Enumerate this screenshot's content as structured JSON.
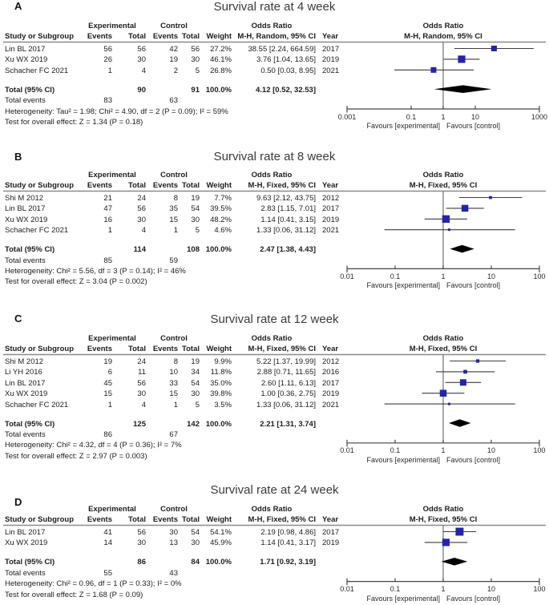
{
  "figure": {
    "favours_left": "Favours [experimental]",
    "favours_right": "Favours [control]",
    "colors": {
      "marker": "#2323b0",
      "diamond": "#000000",
      "axis": "#454545",
      "ref_line": "#6f6f6f",
      "header_rule": "#8a8a8a",
      "text": "#1c1c1c"
    }
  },
  "columns": {
    "group_experimental": "Experimental",
    "group_control": "Control",
    "group_odds_ratio": "Odds Ratio",
    "study": "Study or Subgroup",
    "events": "Events",
    "total": "Total",
    "weight": "Weight",
    "year": "Year",
    "total_events_label": "Total events"
  },
  "chart_data": [
    {
      "type": "forest_plot",
      "label": "A",
      "title": "Survival rate at 4 week",
      "effect_measure": "Odds Ratio",
      "method_header": "M-H, Random, 95% CI",
      "studies": [
        {
          "study": "Lin BL 2017",
          "exp_events": 56,
          "exp_total": 56,
          "ctl_events": 42,
          "ctl_total": 56,
          "weight": "27.2%",
          "weight_val": 27.2,
          "or": 38.55,
          "ci_lo": 2.24,
          "ci_hi": 664.59,
          "or_text": "38.55 [2.24, 664.59]",
          "year": "2017"
        },
        {
          "study": "Xu WX 2019",
          "exp_events": 26,
          "exp_total": 30,
          "ctl_events": 19,
          "ctl_total": 30,
          "weight": "46.1%",
          "weight_val": 46.1,
          "or": 3.76,
          "ci_lo": 1.04,
          "ci_hi": 13.65,
          "or_text": "3.76 [1.04, 13.65]",
          "year": "2019"
        },
        {
          "study": "Schacher FC 2021",
          "exp_events": 1,
          "exp_total": 4,
          "ctl_events": 2,
          "ctl_total": 5,
          "weight": "26.8%",
          "weight_val": 26.8,
          "or": 0.5,
          "ci_lo": 0.03,
          "ci_hi": 8.95,
          "or_text": "0.50 [0.03, 8.95]",
          "year": "2021"
        }
      ],
      "total": {
        "label": "Total (95% CI)",
        "exp_total": 90,
        "ctl_total": 91,
        "weight": "100.0%",
        "or": 4.12,
        "ci_lo": 0.52,
        "ci_hi": 32.53,
        "or_text": "4.12 [0.52, 32.53]"
      },
      "total_events": {
        "exp": 83,
        "ctl": 63
      },
      "heterogeneity": "Heterogeneity: Tau² = 1.98; Chi² = 4.90, df = 2 (P = 0.09); I² = 59%",
      "overall_effect": "Test for overall effect: Z = 1.34 (P = 0.18)",
      "axis": {
        "range": [
          0.001,
          1000
        ],
        "tick_values": [
          0.001,
          0.1,
          1,
          10,
          1000
        ],
        "ticks": [
          "0.001",
          "0.1",
          "1",
          "10",
          "1000"
        ],
        "scale": "log"
      }
    },
    {
      "type": "forest_plot",
      "label": "B",
      "title": "Survival rate at 8 week",
      "effect_measure": "Odds Ratio",
      "method_header": "M-H, Fixed, 95% CI",
      "studies": [
        {
          "study": "Shi M 2012",
          "exp_events": 21,
          "exp_total": 24,
          "ctl_events": 8,
          "ctl_total": 19,
          "weight": "7.7%",
          "weight_val": 7.7,
          "or": 9.63,
          "ci_lo": 2.12,
          "ci_hi": 43.75,
          "or_text": "9.63 [2.12, 43.75]",
          "year": "2012"
        },
        {
          "study": "Lin BL 2017",
          "exp_events": 47,
          "exp_total": 56,
          "ctl_events": 35,
          "ctl_total": 54,
          "weight": "39.5%",
          "weight_val": 39.5,
          "or": 2.83,
          "ci_lo": 1.15,
          "ci_hi": 7.01,
          "or_text": "2.83 [1.15, 7.01]",
          "year": "2017"
        },
        {
          "study": "Xu WX 2019",
          "exp_events": 16,
          "exp_total": 30,
          "ctl_events": 15,
          "ctl_total": 30,
          "weight": "48.2%",
          "weight_val": 48.2,
          "or": 1.14,
          "ci_lo": 0.41,
          "ci_hi": 3.15,
          "or_text": "1.14 [0.41, 3.15]",
          "year": "2019"
        },
        {
          "study": "Schacher FC 2021",
          "exp_events": 1,
          "exp_total": 4,
          "ctl_events": 1,
          "ctl_total": 5,
          "weight": "4.6%",
          "weight_val": 4.6,
          "or": 1.33,
          "ci_lo": 0.06,
          "ci_hi": 31.12,
          "or_text": "1.33 [0.06, 31.12]",
          "year": "2021"
        }
      ],
      "total": {
        "label": "Total (95% CI)",
        "exp_total": 114,
        "ctl_total": 108,
        "weight": "100.0%",
        "or": 2.47,
        "ci_lo": 1.38,
        "ci_hi": 4.43,
        "or_text": "2.47 [1.38, 4.43]"
      },
      "total_events": {
        "exp": 85,
        "ctl": 59
      },
      "heterogeneity": "Heterogeneity: Chi² = 5.56, df = 3 (P = 0.14); I² = 46%",
      "overall_effect": "Test for overall effect: Z = 3.04 (P = 0.002)",
      "axis": {
        "range": [
          0.01,
          100
        ],
        "tick_values": [
          0.01,
          0.1,
          1,
          10,
          100
        ],
        "ticks": [
          "0.01",
          "0.1",
          "1",
          "10",
          "100"
        ],
        "scale": "log"
      }
    },
    {
      "type": "forest_plot",
      "label": "C",
      "title": "Survival rate at 12 week",
      "effect_measure": "Odds Ratio",
      "method_header": "M-H, Fixed, 95% CI",
      "studies": [
        {
          "study": "Shi M 2012",
          "exp_events": 19,
          "exp_total": 24,
          "ctl_events": 8,
          "ctl_total": 19,
          "weight": "9.9%",
          "weight_val": 9.9,
          "or": 5.22,
          "ci_lo": 1.37,
          "ci_hi": 19.99,
          "or_text": "5.22 [1.37, 19.99]",
          "year": "2012"
        },
        {
          "study": "Li YH 2016",
          "exp_events": 6,
          "exp_total": 11,
          "ctl_events": 10,
          "ctl_total": 34,
          "weight": "11.8%",
          "weight_val": 11.8,
          "or": 2.88,
          "ci_lo": 0.71,
          "ci_hi": 11.65,
          "or_text": "2.88 [0.71, 11.65]",
          "year": "2016"
        },
        {
          "study": "Lin BL 2017",
          "exp_events": 45,
          "exp_total": 56,
          "ctl_events": 33,
          "ctl_total": 54,
          "weight": "35.0%",
          "weight_val": 35.0,
          "or": 2.6,
          "ci_lo": 1.11,
          "ci_hi": 6.13,
          "or_text": "2.60 [1.11, 6.13]",
          "year": "2017"
        },
        {
          "study": "Xu WX 2019",
          "exp_events": 15,
          "exp_total": 30,
          "ctl_events": 15,
          "ctl_total": 30,
          "weight": "39.8%",
          "weight_val": 39.8,
          "or": 1.0,
          "ci_lo": 0.36,
          "ci_hi": 2.75,
          "or_text": "1.00 [0.36, 2.75]",
          "year": "2019"
        },
        {
          "study": "Schacher FC 2021",
          "exp_events": 1,
          "exp_total": 4,
          "ctl_events": 1,
          "ctl_total": 5,
          "weight": "3.5%",
          "weight_val": 3.5,
          "or": 1.33,
          "ci_lo": 0.06,
          "ci_hi": 31.12,
          "or_text": "1.33 [0.06, 31.12]",
          "year": "2021"
        }
      ],
      "total": {
        "label": "Total (95% CI)",
        "exp_total": 125,
        "ctl_total": 142,
        "weight": "100.0%",
        "or": 2.21,
        "ci_lo": 1.31,
        "ci_hi": 3.74,
        "or_text": "2.21 [1.31, 3.74]"
      },
      "total_events": {
        "exp": 86,
        "ctl": 67
      },
      "heterogeneity": "Heterogeneity: Chi² = 4.32, df = 4 (P = 0.36); I² = 7%",
      "overall_effect": "Test for overall effect: Z = 2.97 (P = 0.003)",
      "axis": {
        "range": [
          0.01,
          100
        ],
        "tick_values": [
          0.01,
          0.1,
          1,
          10,
          100
        ],
        "ticks": [
          "0.01",
          "0.1",
          "1",
          "10",
          "100"
        ],
        "scale": "log"
      }
    },
    {
      "type": "forest_plot",
      "label": "D",
      "title": "Survival rate at 24 week",
      "effect_measure": "Odds Ratio",
      "method_header": "M-H, Fixed, 95% CI",
      "studies": [
        {
          "study": "Lin BL 2017",
          "exp_events": 41,
          "exp_total": 56,
          "ctl_events": 30,
          "ctl_total": 54,
          "weight": "54.1%",
          "weight_val": 54.1,
          "or": 2.19,
          "ci_lo": 0.98,
          "ci_hi": 4.86,
          "or_text": "2.19 [0.98, 4.86]",
          "year": "2017"
        },
        {
          "study": "Xu WX 2019",
          "exp_events": 14,
          "exp_total": 30,
          "ctl_events": 13,
          "ctl_total": 30,
          "weight": "45.9%",
          "weight_val": 45.9,
          "or": 1.14,
          "ci_lo": 0.41,
          "ci_hi": 3.17,
          "or_text": "1.14 [0.41, 3.17]",
          "year": "2019"
        }
      ],
      "total": {
        "label": "Total (95% CI)",
        "exp_total": 86,
        "ctl_total": 84,
        "weight": "100.0%",
        "or": 1.71,
        "ci_lo": 0.92,
        "ci_hi": 3.19,
        "or_text": "1.71 [0.92, 3.19]"
      },
      "total_events": {
        "exp": 55,
        "ctl": 43
      },
      "heterogeneity": "Heterogeneity: Chi² = 0.96, df = 1 (P = 0.33); I² = 0%",
      "overall_effect": "Test for overall effect: Z = 1.68 (P = 0.09)",
      "axis": {
        "range": [
          0.01,
          100
        ],
        "tick_values": [
          0.01,
          0.1,
          1,
          10,
          100
        ],
        "ticks": [
          "0.01",
          "0.1",
          "1",
          "10",
          "100"
        ],
        "scale": "log"
      }
    }
  ]
}
